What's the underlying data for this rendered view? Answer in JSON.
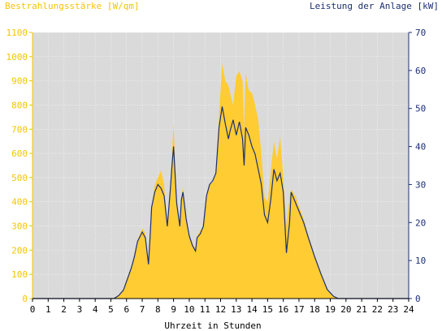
{
  "chart_data": {
    "type": "area",
    "title_left": "Bestrahlungsstärke [W/qm]",
    "title_right": "Leistung der Anlage [kW]",
    "xlabel": "Uhrzeit in Stunden",
    "xlim": [
      0,
      24
    ],
    "ylim_left": [
      0,
      1100
    ],
    "ylim_right": [
      0,
      70
    ],
    "x_ticks": [
      "0",
      "1",
      "2",
      "3",
      "4",
      "5",
      "6",
      "7",
      "8",
      "9",
      "10",
      "11",
      "12",
      "13",
      "14",
      "15",
      "16",
      "17",
      "18",
      "19",
      "20",
      "21",
      "22",
      "23",
      "24"
    ],
    "y_ticks_left": [
      "0",
      "100",
      "200",
      "300",
      "400",
      "500",
      "600",
      "700",
      "800",
      "900",
      "1000",
      "1100"
    ],
    "y_ticks_right": [
      "0",
      "10",
      "20",
      "30",
      "40",
      "50",
      "60",
      "70"
    ],
    "colors": {
      "plot_bg": "#dadada",
      "irradiance_fill": "#ffcc33",
      "power_line": "#1c2f73",
      "left_axis": "#f5c400",
      "right_axis": "#1c2f73",
      "grid": "#ffffff"
    },
    "grid": true,
    "series": [
      {
        "name": "Bestrahlungsstärke [W/qm]",
        "axis": "left",
        "style": "area",
        "x": [
          0,
          5.2,
          5.5,
          5.8,
          6.0,
          6.3,
          6.5,
          6.7,
          7.0,
          7.2,
          7.4,
          7.5,
          7.6,
          7.8,
          8.0,
          8.2,
          8.4,
          8.6,
          8.8,
          8.9,
          9.0,
          9.2,
          9.4,
          9.5,
          9.6,
          9.8,
          10.0,
          10.2,
          10.4,
          10.5,
          10.7,
          10.9,
          11.1,
          11.3,
          11.5,
          11.7,
          11.9,
          12.1,
          12.3,
          12.5,
          12.6,
          12.8,
          13.0,
          13.2,
          13.4,
          13.5,
          13.6,
          13.8,
          14.0,
          14.2,
          14.4,
          14.6,
          14.8,
          15.0,
          15.2,
          15.4,
          15.6,
          15.8,
          16.0,
          16.2,
          16.4,
          16.5,
          16.6,
          16.8,
          17.0,
          17.3,
          17.6,
          18.0,
          18.4,
          18.8,
          19.2,
          19.5,
          19.8,
          20.0,
          20.2,
          24
        ],
        "y": [
          0,
          0,
          15,
          40,
          80,
          130,
          180,
          240,
          290,
          270,
          160,
          260,
          380,
          470,
          500,
          530,
          470,
          300,
          480,
          600,
          720,
          400,
          300,
          420,
          460,
          340,
          260,
          230,
          200,
          260,
          280,
          300,
          430,
          470,
          480,
          520,
          760,
          970,
          900,
          880,
          850,
          800,
          920,
          940,
          900,
          700,
          930,
          860,
          850,
          800,
          740,
          600,
          420,
          400,
          520,
          650,
          580,
          670,
          500,
          300,
          420,
          450,
          440,
          420,
          380,
          330,
          260,
          180,
          110,
          40,
          10,
          0,
          0,
          0,
          0,
          0
        ]
      },
      {
        "name": "Leistung der Anlage [kW]",
        "axis": "right",
        "style": "line",
        "x": [
          0,
          5.2,
          5.5,
          5.8,
          6.0,
          6.3,
          6.5,
          6.7,
          7.0,
          7.2,
          7.4,
          7.5,
          7.6,
          7.8,
          8.0,
          8.2,
          8.4,
          8.6,
          8.8,
          8.9,
          9.0,
          9.2,
          9.4,
          9.5,
          9.6,
          9.8,
          10.0,
          10.2,
          10.4,
          10.5,
          10.7,
          10.9,
          11.1,
          11.3,
          11.5,
          11.7,
          11.9,
          12.1,
          12.3,
          12.5,
          12.6,
          12.8,
          13.0,
          13.2,
          13.4,
          13.5,
          13.6,
          13.8,
          14.0,
          14.2,
          14.4,
          14.6,
          14.8,
          15.0,
          15.2,
          15.4,
          15.6,
          15.8,
          16.0,
          16.2,
          16.4,
          16.5,
          16.6,
          16.8,
          17.0,
          17.3,
          17.6,
          18.0,
          18.4,
          18.8,
          19.2,
          19.5,
          19.8,
          20.0,
          20.2,
          24
        ],
        "y": [
          0,
          0,
          0.8,
          2.2,
          4.5,
          8,
          11,
          15,
          17.5,
          16,
          9,
          16,
          24,
          28,
          30,
          29,
          27,
          19,
          29,
          35,
          40,
          25,
          19,
          26,
          28,
          21,
          16.5,
          14,
          12.5,
          16,
          17,
          19,
          27,
          30,
          31,
          33,
          45,
          50.5,
          46,
          42,
          44,
          47,
          43,
          46.5,
          42,
          35,
          45,
          43,
          40,
          38,
          34,
          30,
          22,
          20,
          26,
          34,
          31,
          33,
          28,
          12,
          20,
          28,
          27,
          25,
          23,
          20,
          16,
          11,
          6.5,
          2.4,
          0.6,
          0,
          0,
          0,
          0,
          0
        ]
      }
    ]
  }
}
